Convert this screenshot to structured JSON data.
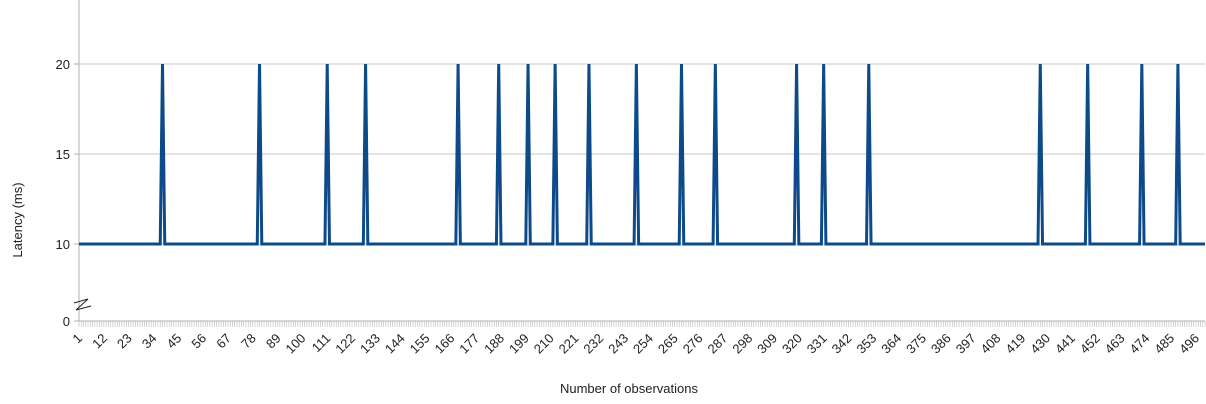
{
  "chart_data": {
    "type": "line",
    "xlabel": "Number of observations",
    "ylabel": "Latency (ms)",
    "y_axis_break": true,
    "y_ticks": [
      0,
      10,
      15,
      20
    ],
    "x_tick_labels": [
      "1",
      "12",
      "23",
      "34",
      "45",
      "56",
      "67",
      "78",
      "89",
      "100",
      "111",
      "122",
      "133",
      "144",
      "155",
      "166",
      "177",
      "188",
      "199",
      "210",
      "221",
      "232",
      "243",
      "254",
      "265",
      "276",
      "287",
      "298",
      "309",
      "320",
      "331",
      "342",
      "353",
      "364",
      "375",
      "386",
      "397",
      "408",
      "419",
      "430",
      "441",
      "452",
      "463",
      "474",
      "485",
      "496"
    ],
    "x_range": [
      1,
      500
    ],
    "grid": "horizontal",
    "line_color": "#0d4a8a",
    "baseline_value": 10,
    "spike_value": 20,
    "spike_observations": [
      38,
      81,
      111,
      128,
      169,
      187,
      200,
      212,
      227,
      248,
      268,
      283,
      319,
      331,
      351,
      427,
      448,
      472,
      488
    ],
    "series": [
      {
        "values_rule": "10 everywhere except 20 at spike_observations"
      }
    ]
  }
}
